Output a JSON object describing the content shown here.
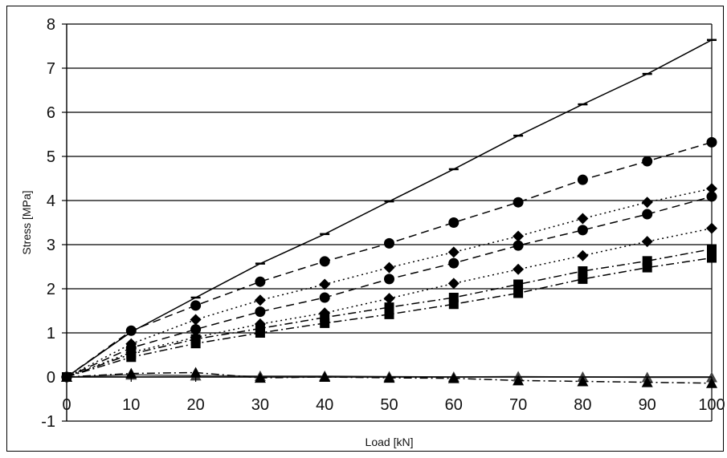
{
  "chart_data": {
    "type": "line",
    "title": "",
    "xlabel": "Load [kN]",
    "ylabel": "Stress [MPa]",
    "xlim": [
      0,
      100
    ],
    "ylim": [
      -1,
      8
    ],
    "x_ticks": [
      0,
      10,
      20,
      30,
      40,
      50,
      60,
      70,
      80,
      90,
      100
    ],
    "y_ticks": [
      -1,
      0,
      1,
      2,
      3,
      4,
      5,
      6,
      7,
      8
    ],
    "grid": "horizontal",
    "legend": "none",
    "x": [
      0,
      10,
      20,
      30,
      40,
      50,
      60,
      70,
      80,
      90,
      100
    ],
    "series": [
      {
        "marker": "dash",
        "line": "solid",
        "color": "#000000",
        "values": [
          0,
          1.02,
          1.8,
          2.57,
          3.24,
          3.98,
          4.71,
          5.47,
          6.18,
          6.87,
          7.64
        ]
      },
      {
        "marker": "circle",
        "line": "dashed",
        "color": "#000000",
        "values": [
          0,
          1.05,
          1.62,
          2.16,
          2.62,
          3.03,
          3.5,
          3.96,
          4.47,
          4.89,
          5.32
        ]
      },
      {
        "marker": "diamond",
        "line": "dotted",
        "color": "#000000",
        "values": [
          0,
          0.75,
          1.3,
          1.74,
          2.1,
          2.48,
          2.83,
          3.19,
          3.59,
          3.96,
          4.27
        ]
      },
      {
        "marker": "circle",
        "line": "dashed",
        "color": "#000000",
        "values": [
          0,
          0.66,
          1.08,
          1.48,
          1.8,
          2.22,
          2.58,
          2.98,
          3.33,
          3.69,
          4.09
        ]
      },
      {
        "marker": "diamond",
        "line": "dotted",
        "color": "#000000",
        "values": [
          0,
          0.56,
          0.9,
          1.2,
          1.45,
          1.78,
          2.12,
          2.44,
          2.75,
          3.07,
          3.37
        ]
      },
      {
        "marker": "square",
        "line": "dash-dot",
        "color": "#000000",
        "values": [
          0,
          0.52,
          0.86,
          1.1,
          1.35,
          1.58,
          1.8,
          2.1,
          2.4,
          2.63,
          2.9
        ]
      },
      {
        "marker": "square",
        "line": "dash-dot",
        "color": "#000000",
        "values": [
          0,
          0.45,
          0.76,
          1.0,
          1.22,
          1.42,
          1.65,
          1.9,
          2.22,
          2.48,
          2.7
        ]
      },
      {
        "marker": "triangle",
        "line": "solid",
        "color": "#444444",
        "values": [
          0,
          0.05,
          0.03,
          0.02,
          0.02,
          0.01,
          0.0,
          0.01,
          0.0,
          -0.01,
          -0.01
        ]
      },
      {
        "marker": "triangle",
        "line": "dash-dot",
        "color": "#000000",
        "values": [
          0,
          0.08,
          0.1,
          -0.02,
          0.0,
          -0.02,
          -0.03,
          -0.08,
          -0.1,
          -0.12,
          -0.14
        ]
      }
    ]
  }
}
